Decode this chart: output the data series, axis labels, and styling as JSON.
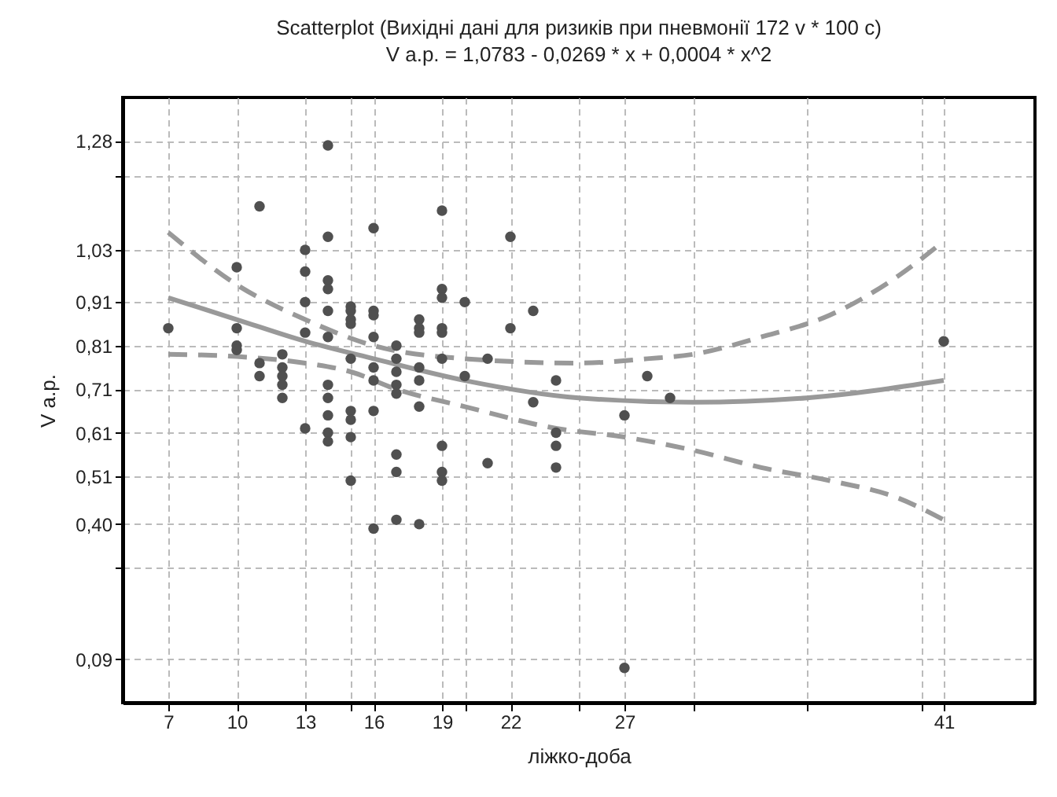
{
  "chart_data": {
    "type": "scatter",
    "title": "Scatterplot (Вихідні дані для ризиків при пневмонії 172 v * 100 c)",
    "subtitle": "V а.р. = 1,0783 - 0,0269 * x + 0,0004 * x^2",
    "xlabel": "ліжко-доба",
    "ylabel": "V а.р.",
    "xlim": [
      5,
      45
    ],
    "ylim": [
      -0.01,
      1.38
    ],
    "xticks": [
      7,
      10,
      13,
      {
        "value": 15,
        "label": null
      },
      16,
      19,
      {
        "value": 20,
        "label": null
      },
      22,
      {
        "value": 25,
        "label": null
      },
      27,
      {
        "value": 30,
        "label": null
      },
      {
        "value": 35,
        "label": null
      },
      {
        "value": 40,
        "label": null
      },
      41
    ],
    "yticks": [
      {
        "value": 0.09,
        "label": "0,09"
      },
      {
        "value": 0.3,
        "label": null
      },
      {
        "value": 0.4,
        "label": "0,40"
      },
      {
        "value": 0.51,
        "label": "0,51"
      },
      {
        "value": 0.61,
        "label": "0,61"
      },
      {
        "value": 0.71,
        "label": "0,71"
      },
      {
        "value": 0.81,
        "label": "0,81"
      },
      {
        "value": 0.91,
        "label": "0,91"
      },
      {
        "value": 1.03,
        "label": "1,03"
      },
      {
        "value": 1.2,
        "label": null
      },
      {
        "value": 1.28,
        "label": "1,28"
      }
    ],
    "grid": true,
    "marker": "circle",
    "series": [
      {
        "color": "#505050",
        "x": [
          7,
          10,
          10,
          10,
          10,
          11,
          11,
          11,
          12,
          12,
          12,
          12,
          12,
          13,
          13,
          13,
          13,
          13,
          14,
          14,
          14,
          14,
          14,
          14,
          14,
          14,
          14,
          14,
          14,
          15,
          15,
          15,
          15,
          15,
          15,
          15,
          15,
          15,
          16,
          16,
          16,
          16,
          16,
          16,
          16,
          16,
          17,
          17,
          17,
          17,
          17,
          17,
          17,
          17,
          18,
          18,
          18,
          18,
          18,
          18,
          18,
          19,
          19,
          19,
          19,
          19,
          19,
          19,
          19,
          19,
          20,
          20,
          21,
          21,
          22,
          22,
          23,
          23,
          24,
          24,
          24,
          24,
          27,
          27,
          28,
          29,
          41
        ],
        "values": [
          0.85,
          0.99,
          0.85,
          0.81,
          0.8,
          1.13,
          0.77,
          0.74,
          0.79,
          0.76,
          0.74,
          0.72,
          0.69,
          1.03,
          0.98,
          0.91,
          0.84,
          0.62,
          1.27,
          1.06,
          0.96,
          0.94,
          0.89,
          0.83,
          0.72,
          0.69,
          0.65,
          0.61,
          0.59,
          0.9,
          0.89,
          0.87,
          0.86,
          0.78,
          0.66,
          0.64,
          0.6,
          0.5,
          1.08,
          0.89,
          0.88,
          0.83,
          0.76,
          0.73,
          0.66,
          0.39,
          0.81,
          0.78,
          0.75,
          0.72,
          0.7,
          0.56,
          0.52,
          0.41,
          0.87,
          0.85,
          0.84,
          0.76,
          0.73,
          0.67,
          0.4,
          1.12,
          0.94,
          0.92,
          0.85,
          0.84,
          0.78,
          0.58,
          0.52,
          0.5,
          0.91,
          0.74,
          0.78,
          0.54,
          1.06,
          0.85,
          0.89,
          0.68,
          0.73,
          0.61,
          0.58,
          0.53,
          0.65,
          0.07,
          0.74,
          0.69,
          0.82
        ]
      },
      {
        "type": "line",
        "marker": "none",
        "color": "#999999",
        "line_style": "solid",
        "x": [
          7,
          10,
          13,
          16,
          20,
          25,
          30,
          35,
          41
        ],
        "values": [
          0.92,
          0.87,
          0.82,
          0.78,
          0.73,
          0.69,
          0.68,
          0.69,
          0.73
        ]
      },
      {
        "type": "line",
        "marker": "none",
        "color": "#999999",
        "line_style": "dashed",
        "x": [
          7,
          10,
          13,
          16,
          20,
          25,
          28,
          30,
          33,
          36,
          39,
          41
        ],
        "values": [
          1.07,
          0.95,
          0.87,
          0.81,
          0.78,
          0.77,
          0.78,
          0.79,
          0.83,
          0.88,
          0.97,
          1.05
        ]
      },
      {
        "type": "line",
        "marker": "none",
        "color": "#999999",
        "line_style": "dashed",
        "x": [
          7,
          10,
          13,
          15,
          17,
          20,
          24,
          27,
          30,
          33,
          36,
          39,
          41
        ],
        "values": [
          0.79,
          0.785,
          0.77,
          0.75,
          0.71,
          0.67,
          0.62,
          0.6,
          0.57,
          0.53,
          0.5,
          0.46,
          0.41
        ]
      }
    ]
  }
}
